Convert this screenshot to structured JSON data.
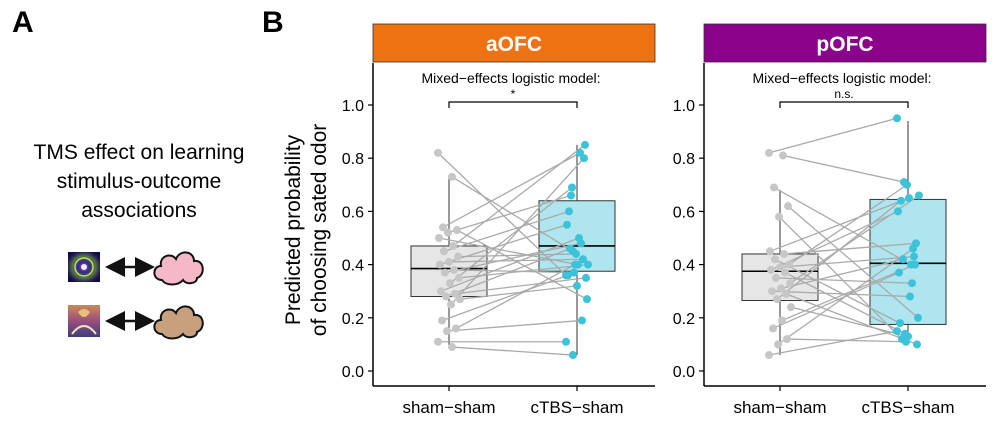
{
  "panel_a": {
    "letter": "A",
    "caption_lines": [
      "TMS effect on learning",
      "stimulus-outcome",
      "associations"
    ]
  },
  "panel_b": {
    "letter": "B",
    "ylabel_lines": [
      "Predicted probability",
      "of choosing sated odor"
    ]
  },
  "colors": {
    "aOFC_header": "#ee7212",
    "pOFC_header": "#8b028b",
    "sham_box": "#e6e6e6",
    "ctbs_box": "#aee5ee",
    "sham_point": "#c6c6c6",
    "ctbs_point": "#3cc3da",
    "line": "#aaaaaa",
    "cloud_pink": "#f5b8c6",
    "cloud_brown": "#c7a17d"
  },
  "icons": [
    "kaleidoscope-image-icon",
    "double-arrow-icon",
    "cloud-icon",
    "fractal-image-icon"
  ],
  "chart_data": [
    {
      "type": "box",
      "title": "aOFC",
      "annotation": "Mixed−effects logistic model:",
      "significance": "*",
      "categories": [
        "sham−sham",
        "cTBS−sham"
      ],
      "ylim": [
        -0.06,
        1.15
      ],
      "yticks": [
        "0.0",
        "0.2",
        "0.4",
        "0.6",
        "0.8",
        "1.0"
      ],
      "boxes": [
        {
          "q1": 0.28,
          "median": 0.385,
          "q3": 0.47,
          "whisker_low": 0.09,
          "whisker_high": 0.73
        },
        {
          "q1": 0.375,
          "median": 0.47,
          "q3": 0.64,
          "whisker_low": 0.06,
          "whisker_high": 0.85
        }
      ],
      "pairs": [
        [
          0.82,
          0.36
        ],
        [
          0.73,
          0.45
        ],
        [
          0.54,
          0.82
        ],
        [
          0.53,
          0.27
        ],
        [
          0.52,
          0.66
        ],
        [
          0.5,
          0.4
        ],
        [
          0.47,
          0.85
        ],
        [
          0.45,
          0.6
        ],
        [
          0.43,
          0.44
        ],
        [
          0.41,
          0.42
        ],
        [
          0.4,
          0.55
        ],
        [
          0.38,
          0.37
        ],
        [
          0.37,
          0.48
        ],
        [
          0.35,
          0.4
        ],
        [
          0.33,
          0.69
        ],
        [
          0.3,
          0.5
        ],
        [
          0.29,
          0.35
        ],
        [
          0.28,
          0.46
        ],
        [
          0.27,
          0.32
        ],
        [
          0.25,
          0.8
        ],
        [
          0.19,
          0.36
        ],
        [
          0.16,
          0.4
        ],
        [
          0.15,
          0.19
        ],
        [
          0.11,
          0.11
        ],
        [
          0.09,
          0.06
        ]
      ]
    },
    {
      "type": "box",
      "title": "pOFC",
      "annotation": "Mixed−effects logistic model:",
      "significance": "n.s.",
      "categories": [
        "sham−sham",
        "cTBS−sham"
      ],
      "ylim": [
        -0.06,
        1.15
      ],
      "yticks": [
        "0.0",
        "0.2",
        "0.4",
        "0.6",
        "0.8",
        "1.0"
      ],
      "boxes": [
        {
          "q1": 0.265,
          "median": 0.375,
          "q3": 0.44,
          "whisker_low": 0.06,
          "whisker_high": 0.68
        },
        {
          "q1": 0.175,
          "median": 0.405,
          "q3": 0.645,
          "whisker_low": 0.1,
          "whisker_high": 0.94
        }
      ],
      "pairs": [
        [
          0.82,
          0.95
        ],
        [
          0.81,
          0.71
        ],
        [
          0.69,
          0.4
        ],
        [
          0.62,
          0.2
        ],
        [
          0.58,
          0.12
        ],
        [
          0.45,
          0.65
        ],
        [
          0.44,
          0.48
        ],
        [
          0.42,
          0.18
        ],
        [
          0.4,
          0.7
        ],
        [
          0.39,
          0.43
        ],
        [
          0.38,
          0.6
        ],
        [
          0.37,
          0.14
        ],
        [
          0.35,
          0.33
        ],
        [
          0.33,
          0.66
        ],
        [
          0.31,
          0.42
        ],
        [
          0.3,
          0.28
        ],
        [
          0.29,
          0.1
        ],
        [
          0.27,
          0.64
        ],
        [
          0.24,
          0.13
        ],
        [
          0.19,
          0.4
        ],
        [
          0.16,
          0.37
        ],
        [
          0.12,
          0.11
        ],
        [
          0.1,
          0.46
        ],
        [
          0.06,
          0.15
        ]
      ]
    }
  ]
}
